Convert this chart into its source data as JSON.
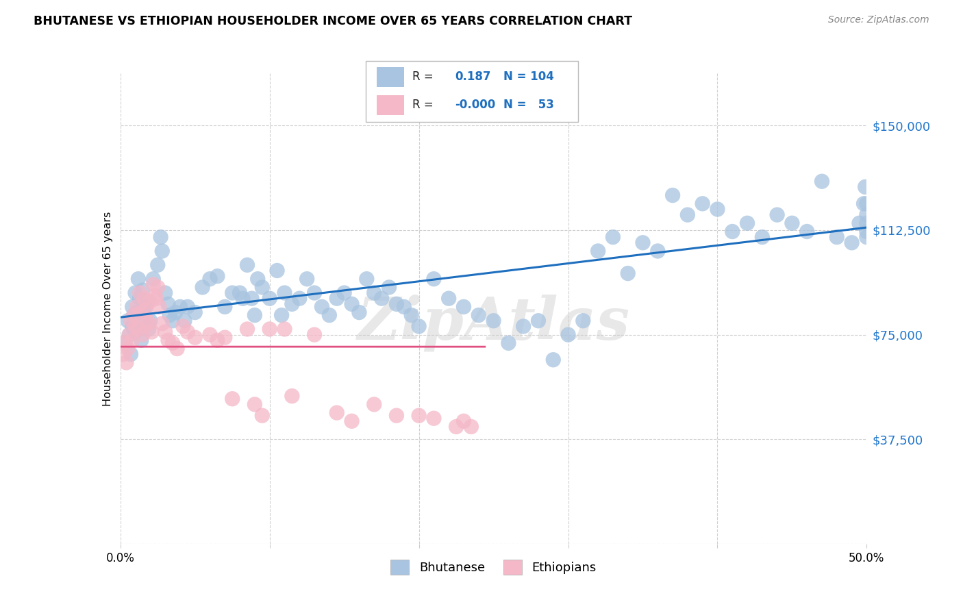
{
  "title": "BHUTANESE VS ETHIOPIAN HOUSEHOLDER INCOME OVER 65 YEARS CORRELATION CHART",
  "source": "Source: ZipAtlas.com",
  "ylabel": "Householder Income Over 65 years",
  "y_tick_values": [
    37500,
    75000,
    112500,
    150000
  ],
  "y_min": 0,
  "y_max": 168750,
  "x_min": 0.0,
  "x_max": 0.5,
  "legend_r_bhutanese": "0.187",
  "legend_n_bhutanese": "104",
  "legend_r_ethiopian": "-0.000",
  "legend_n_ethiopian": "53",
  "bhutanese_color": "#a8c4e0",
  "ethiopian_color": "#f4b8c8",
  "trend_blue": "#1f6fbf",
  "trend_pink": "#e05080",
  "watermark": "ZipAtlas",
  "blue_scatter_x": [
    0.003,
    0.005,
    0.006,
    0.007,
    0.008,
    0.008,
    0.009,
    0.01,
    0.01,
    0.011,
    0.012,
    0.013,
    0.014,
    0.015,
    0.015,
    0.016,
    0.017,
    0.018,
    0.019,
    0.02,
    0.022,
    0.025,
    0.027,
    0.028,
    0.03,
    0.032,
    0.033,
    0.035,
    0.037,
    0.04,
    0.043,
    0.045,
    0.05,
    0.055,
    0.06,
    0.065,
    0.07,
    0.075,
    0.08,
    0.082,
    0.085,
    0.088,
    0.09,
    0.092,
    0.095,
    0.1,
    0.105,
    0.108,
    0.11,
    0.115,
    0.12,
    0.125,
    0.13,
    0.135,
    0.14,
    0.145,
    0.15,
    0.155,
    0.16,
    0.165,
    0.17,
    0.175,
    0.18,
    0.185,
    0.19,
    0.195,
    0.2,
    0.21,
    0.22,
    0.23,
    0.24,
    0.25,
    0.26,
    0.27,
    0.28,
    0.29,
    0.3,
    0.31,
    0.32,
    0.33,
    0.34,
    0.35,
    0.36,
    0.37,
    0.38,
    0.39,
    0.4,
    0.41,
    0.42,
    0.43,
    0.44,
    0.45,
    0.46,
    0.47,
    0.48,
    0.49,
    0.495,
    0.498,
    0.499,
    0.5,
    0.5,
    0.5,
    0.5,
    0.5
  ],
  "blue_scatter_y": [
    72000,
    80000,
    75000,
    68000,
    85000,
    78000,
    82000,
    76000,
    90000,
    83000,
    95000,
    88000,
    73000,
    84000,
    91000,
    79000,
    85000,
    87000,
    77000,
    80000,
    95000,
    100000,
    110000,
    105000,
    90000,
    86000,
    82000,
    80000,
    83000,
    85000,
    80000,
    85000,
    83000,
    92000,
    95000,
    96000,
    85000,
    90000,
    90000,
    88000,
    100000,
    88000,
    82000,
    95000,
    92000,
    88000,
    98000,
    82000,
    90000,
    86000,
    88000,
    95000,
    90000,
    85000,
    82000,
    88000,
    90000,
    86000,
    83000,
    95000,
    90000,
    88000,
    92000,
    86000,
    85000,
    82000,
    78000,
    95000,
    88000,
    85000,
    82000,
    80000,
    72000,
    78000,
    80000,
    66000,
    75000,
    80000,
    105000,
    110000,
    97000,
    108000,
    105000,
    125000,
    118000,
    122000,
    120000,
    112000,
    115000,
    110000,
    118000,
    115000,
    112000,
    130000,
    110000,
    108000,
    115000,
    122000,
    128000,
    112000,
    118000,
    110000,
    115000,
    122000
  ],
  "pink_scatter_x": [
    0.002,
    0.003,
    0.004,
    0.005,
    0.006,
    0.007,
    0.008,
    0.009,
    0.01,
    0.011,
    0.012,
    0.013,
    0.014,
    0.015,
    0.016,
    0.017,
    0.018,
    0.019,
    0.02,
    0.021,
    0.022,
    0.023,
    0.024,
    0.025,
    0.026,
    0.028,
    0.03,
    0.032,
    0.035,
    0.038,
    0.042,
    0.045,
    0.05,
    0.06,
    0.065,
    0.07,
    0.075,
    0.085,
    0.09,
    0.095,
    0.1,
    0.11,
    0.115,
    0.13,
    0.145,
    0.155,
    0.17,
    0.185,
    0.2,
    0.21,
    0.225,
    0.23,
    0.235
  ],
  "pink_scatter_y": [
    68000,
    72000,
    65000,
    70000,
    75000,
    80000,
    73000,
    82000,
    78000,
    85000,
    77000,
    90000,
    83000,
    75000,
    88000,
    84000,
    80000,
    79000,
    87000,
    76000,
    93000,
    89000,
    88000,
    92000,
    85000,
    79000,
    76000,
    73000,
    72000,
    70000,
    78000,
    76000,
    74000,
    75000,
    73000,
    74000,
    52000,
    77000,
    50000,
    46000,
    77000,
    77000,
    53000,
    75000,
    47000,
    44000,
    50000,
    46000,
    46000,
    45000,
    42000,
    44000,
    42000
  ]
}
